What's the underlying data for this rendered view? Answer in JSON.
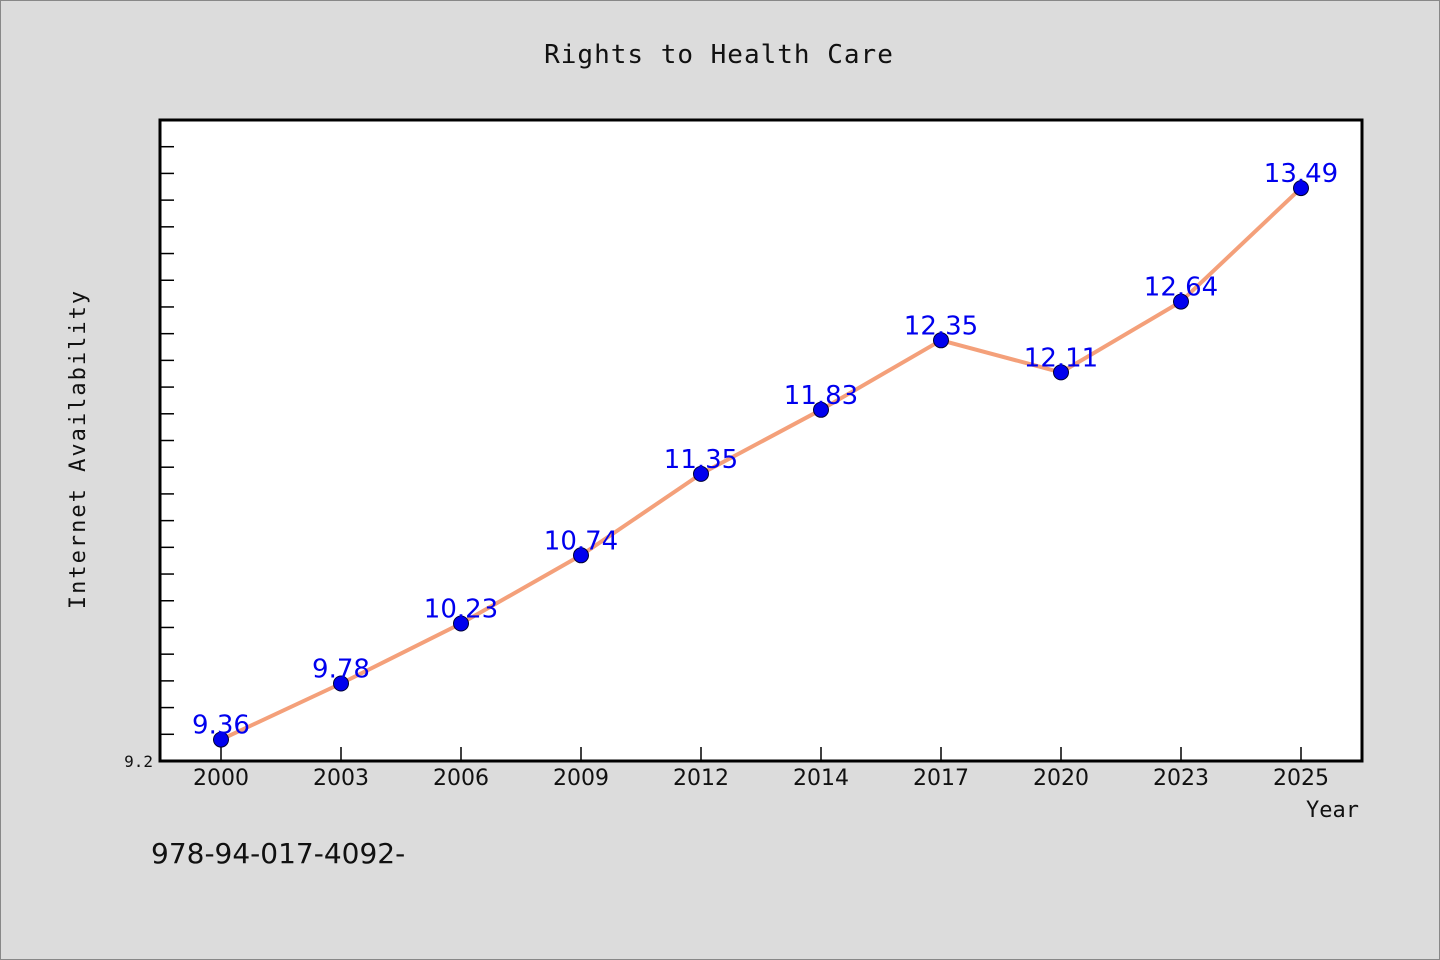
{
  "chart_data": {
    "type": "line",
    "title": "Rights to Health Care",
    "xlabel": "Year",
    "ylabel": "Internet Availability",
    "x": [
      "2000",
      "2003",
      "2006",
      "2009",
      "2012",
      "2014",
      "2017",
      "2020",
      "2023",
      "2025"
    ],
    "series": [
      {
        "values": [
          9.36,
          9.78,
          10.23,
          10.74,
          11.35,
          11.83,
          12.35,
          12.11,
          12.64,
          13.49
        ]
      }
    ],
    "ylim": [
      9.2,
      14.0
    ],
    "y_tick_label": "9.2",
    "grid": false,
    "line_color": "#f4a07a",
    "marker_color": "#0000ee",
    "label_color": "#0000ee"
  },
  "footer_text": "978-94-017-4092-"
}
